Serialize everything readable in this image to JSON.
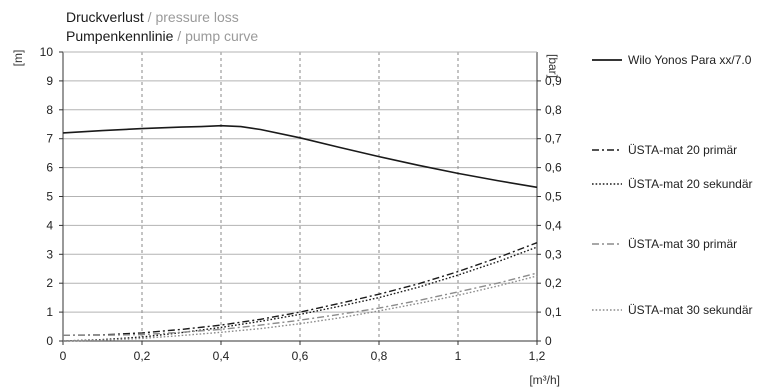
{
  "title": {
    "de_line1": "Druckverlust",
    "en_line1": "pressure loss",
    "de_line2": "Pumpenkennlinie",
    "en_line2": "pump curve",
    "separator": " / "
  },
  "units": {
    "left": "[m]",
    "right": "[bar]",
    "x": "[m³/h]"
  },
  "chart_data": {
    "type": "line",
    "xlim": [
      0,
      1.2
    ],
    "ylim_left": [
      0,
      10
    ],
    "ylim_right": [
      0,
      1.0
    ],
    "x_ticks": [
      "0",
      "0,2",
      "0,4",
      "0,6",
      "0,8",
      "1",
      "1,2"
    ],
    "y_left_ticks": [
      "0",
      "1",
      "2",
      "3",
      "4",
      "5",
      "6",
      "7",
      "8",
      "9",
      "10"
    ],
    "y_right_ticks": [
      "0",
      "0,1",
      "0,2",
      "0,3",
      "0,4",
      "0,5",
      "0,6",
      "0,7",
      "0,8",
      "0,9"
    ],
    "grid": true,
    "legend_position": "right",
    "series": [
      {
        "name": "Wilo Yonos Para xx/7.0",
        "style": "solid",
        "color": "#1a1a1a",
        "x": [
          0,
          0.1,
          0.2,
          0.3,
          0.35,
          0.4,
          0.45,
          0.5,
          0.6,
          0.7,
          0.8,
          0.9,
          1.0,
          1.1,
          1.2
        ],
        "y": [
          7.2,
          7.28,
          7.35,
          7.4,
          7.42,
          7.45,
          7.42,
          7.32,
          7.03,
          6.7,
          6.38,
          6.08,
          5.8,
          5.55,
          5.32
        ]
      },
      {
        "name": "ÜSTA-mat 20 primär",
        "style": "dashdot",
        "color": "#1a1a1a",
        "x": [
          0,
          0.1,
          0.2,
          0.3,
          0.4,
          0.5,
          0.6,
          0.7,
          0.8,
          0.9,
          1.0,
          1.1,
          1.2
        ],
        "y": [
          0.2,
          0.21,
          0.28,
          0.4,
          0.55,
          0.75,
          1.0,
          1.3,
          1.62,
          1.98,
          2.4,
          2.88,
          3.4
        ]
      },
      {
        "name": "ÜSTA-mat 20 sekundär",
        "style": "dotted",
        "color": "#1a1a1a",
        "x": [
          0,
          0.1,
          0.2,
          0.3,
          0.4,
          0.5,
          0.6,
          0.7,
          0.8,
          0.9,
          1.0,
          1.1,
          1.2
        ],
        "y": [
          0.0,
          0.05,
          0.14,
          0.29,
          0.47,
          0.68,
          0.92,
          1.2,
          1.5,
          1.86,
          2.28,
          2.74,
          3.25
        ]
      },
      {
        "name": "ÜSTA-mat 30 primär",
        "style": "dashdot",
        "color": "#8c8c8c",
        "x": [
          0,
          0.1,
          0.2,
          0.3,
          0.4,
          0.5,
          0.6,
          0.7,
          0.8,
          0.9,
          1.0,
          1.1,
          1.2
        ],
        "y": [
          0.2,
          0.2,
          0.22,
          0.3,
          0.4,
          0.55,
          0.72,
          0.92,
          1.14,
          1.4,
          1.7,
          2.0,
          2.35
        ]
      },
      {
        "name": "ÜSTA-mat 30 sekundär",
        "style": "dotted",
        "color": "#8c8c8c",
        "x": [
          0,
          0.1,
          0.2,
          0.3,
          0.4,
          0.5,
          0.6,
          0.7,
          0.8,
          0.9,
          1.0,
          1.1,
          1.2
        ],
        "y": [
          0.0,
          0.03,
          0.09,
          0.19,
          0.3,
          0.43,
          0.6,
          0.8,
          1.04,
          1.3,
          1.58,
          1.9,
          2.25
        ]
      }
    ]
  }
}
